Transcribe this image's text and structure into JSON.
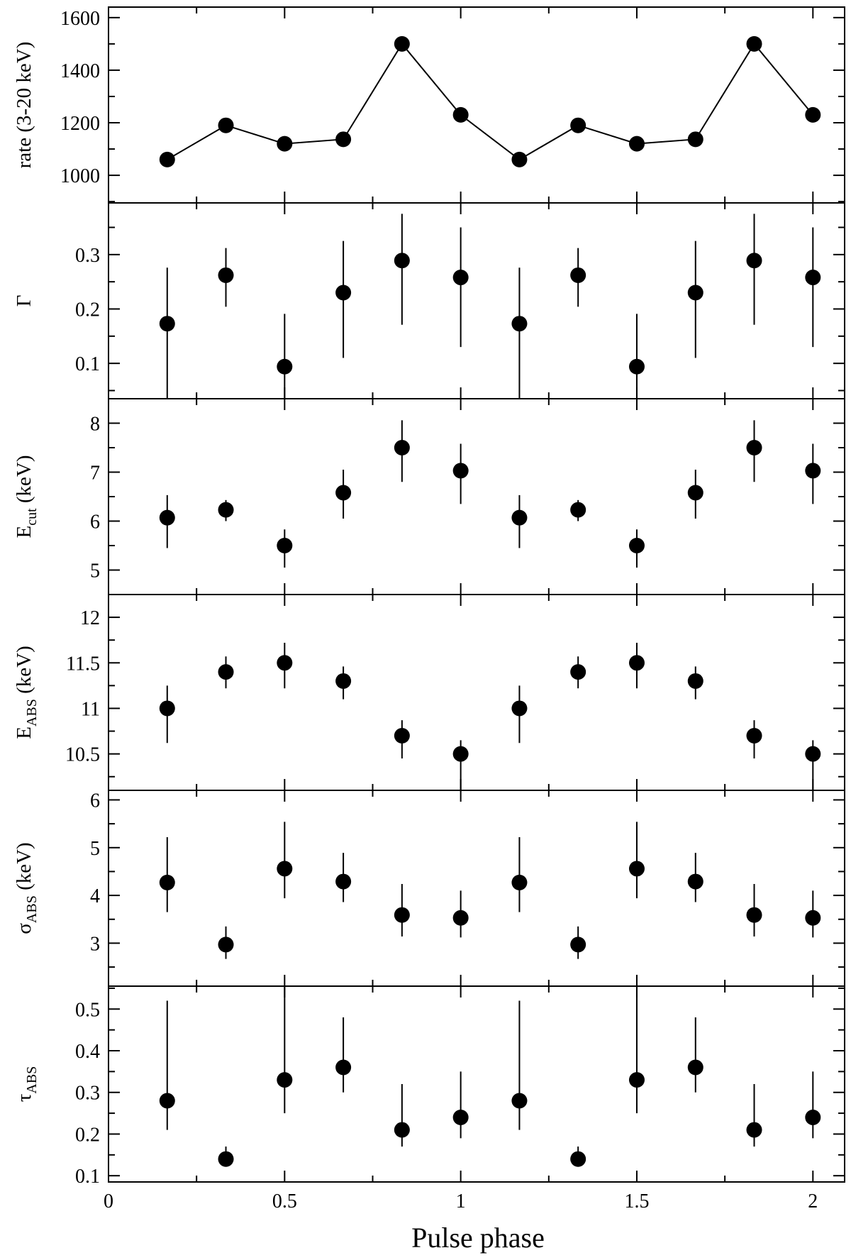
{
  "chart_data": {
    "type": "scatter",
    "xlabel": "Pulse phase",
    "x_ticks": [
      "0",
      "0.5",
      "1",
      "1.5",
      "2"
    ],
    "xlim": [
      0,
      2.09
    ],
    "panels": [
      {
        "id": "rate",
        "ylabel": "rate (3-20 keV)",
        "ylabel_sub": "",
        "ylabel_rest": "",
        "ylim": [
          895,
          1640
        ],
        "y_ticks": [
          "1000",
          "1200",
          "1400",
          "1600"
        ],
        "connected": true,
        "series": {
          "x": [
            0.1667,
            0.3333,
            0.5,
            0.6667,
            0.8333,
            1.0,
            1.1667,
            1.3333,
            1.5,
            1.6667,
            1.8333,
            2.0
          ],
          "y": [
            1060,
            1190,
            1120,
            1137,
            1500,
            1230,
            1060,
            1190,
            1120,
            1137,
            1500,
            1230
          ]
        }
      },
      {
        "id": "gamma",
        "ylabel": "Γ",
        "ylabel_sub": "",
        "ylabel_rest": "",
        "ylim": [
          0.035,
          0.395
        ],
        "y_ticks": [
          "0.1",
          "0.2",
          "0.3"
        ],
        "connected": false,
        "series": {
          "x": [
            0.1667,
            0.3333,
            0.5,
            0.6667,
            0.8333,
            1.0,
            1.1667,
            1.3333,
            1.5,
            1.6667,
            1.8333,
            2.0
          ],
          "y": [
            0.173,
            0.262,
            0.094,
            0.23,
            0.289,
            0.258,
            0.173,
            0.262,
            0.094,
            0.23,
            0.289,
            0.258
          ],
          "yerr_low": [
            0.14,
            0.058,
            0.06,
            0.12,
            0.118,
            0.128,
            0.14,
            0.058,
            0.06,
            0.12,
            0.118,
            0.128
          ],
          "yerr_high": [
            0.103,
            0.05,
            0.097,
            0.095,
            0.086,
            0.092,
            0.103,
            0.05,
            0.097,
            0.095,
            0.086,
            0.092
          ]
        }
      },
      {
        "id": "ecut",
        "ylabel": "E",
        "ylabel_sub": "cut",
        "ylabel_rest": " (keV)",
        "ylim": [
          4.5,
          8.5
        ],
        "y_ticks": [
          "5",
          "6",
          "7",
          "8"
        ],
        "connected": false,
        "series": {
          "x": [
            0.1667,
            0.3333,
            0.5,
            0.6667,
            0.8333,
            1.0,
            1.1667,
            1.3333,
            1.5,
            1.6667,
            1.8333,
            2.0
          ],
          "y": [
            6.07,
            6.23,
            5.5,
            6.58,
            7.5,
            7.03,
            6.07,
            6.23,
            5.5,
            6.58,
            7.5,
            7.03
          ],
          "yerr_low": [
            0.62,
            0.23,
            0.45,
            0.53,
            0.7,
            0.68,
            0.62,
            0.23,
            0.45,
            0.53,
            0.7,
            0.68
          ],
          "yerr_high": [
            0.46,
            0.2,
            0.33,
            0.47,
            0.56,
            0.55,
            0.46,
            0.2,
            0.33,
            0.47,
            0.56,
            0.55
          ]
        }
      },
      {
        "id": "eabs",
        "ylabel": "E",
        "ylabel_sub": "ABS",
        "ylabel_rest": " (keV)",
        "ylim": [
          10.1,
          12.25
        ],
        "y_ticks": [
          "10.5",
          "11",
          "11.5",
          "12"
        ],
        "connected": false,
        "series": {
          "x": [
            0.1667,
            0.3333,
            0.5,
            0.6667,
            0.8333,
            1.0,
            1.1667,
            1.3333,
            1.5,
            1.6667,
            1.8333,
            2.0
          ],
          "y": [
            11.0,
            11.4,
            11.5,
            11.3,
            10.7,
            10.5,
            11.0,
            11.4,
            11.5,
            11.3,
            10.7,
            10.5
          ],
          "yerr_low": [
            0.38,
            0.18,
            0.28,
            0.2,
            0.25,
            0.4,
            0.38,
            0.18,
            0.28,
            0.2,
            0.25,
            0.4
          ],
          "yerr_high": [
            0.25,
            0.17,
            0.22,
            0.16,
            0.17,
            0.15,
            0.25,
            0.17,
            0.22,
            0.16,
            0.17,
            0.15
          ]
        }
      },
      {
        "id": "sigma",
        "ylabel": "σ",
        "ylabel_sub": "ABS",
        "ylabel_rest": " (keV)",
        "ylim": [
          2.1,
          6.2
        ],
        "y_ticks": [
          "3",
          "4",
          "5",
          "6"
        ],
        "connected": false,
        "series": {
          "x": [
            0.1667,
            0.3333,
            0.5,
            0.6667,
            0.8333,
            1.0,
            1.1667,
            1.3333,
            1.5,
            1.6667,
            1.8333,
            2.0
          ],
          "y": [
            4.27,
            2.97,
            4.56,
            4.29,
            3.59,
            3.53,
            4.27,
            2.97,
            4.56,
            4.29,
            3.59,
            3.53
          ],
          "yerr_low": [
            0.62,
            0.3,
            0.62,
            0.43,
            0.45,
            0.41,
            0.62,
            0.3,
            0.62,
            0.43,
            0.45,
            0.41
          ],
          "yerr_high": [
            0.95,
            0.38,
            0.98,
            0.6,
            0.65,
            0.57,
            0.95,
            0.38,
            0.98,
            0.6,
            0.65,
            0.57
          ]
        }
      },
      {
        "id": "tau",
        "ylabel": "τ",
        "ylabel_sub": "ABS",
        "ylabel_rest": "",
        "ylim": [
          0.085,
          0.555
        ],
        "y_ticks": [
          "0.1",
          "0.2",
          "0.3",
          "0.4",
          "0.5"
        ],
        "connected": false,
        "series": {
          "x": [
            0.1667,
            0.3333,
            0.5,
            0.6667,
            0.8333,
            1.0,
            1.1667,
            1.3333,
            1.5,
            1.6667,
            1.8333,
            2.0
          ],
          "y": [
            0.28,
            0.14,
            0.33,
            0.36,
            0.21,
            0.24,
            0.28,
            0.14,
            0.33,
            0.36,
            0.21,
            0.24
          ],
          "yerr_low": [
            0.07,
            0.01,
            0.08,
            0.06,
            0.04,
            0.05,
            0.07,
            0.01,
            0.08,
            0.06,
            0.04,
            0.05
          ],
          "yerr_high": [
            0.24,
            0.03,
            0.225,
            0.12,
            0.11,
            0.11,
            0.24,
            0.03,
            0.225,
            0.12,
            0.11,
            0.11
          ]
        }
      }
    ]
  }
}
